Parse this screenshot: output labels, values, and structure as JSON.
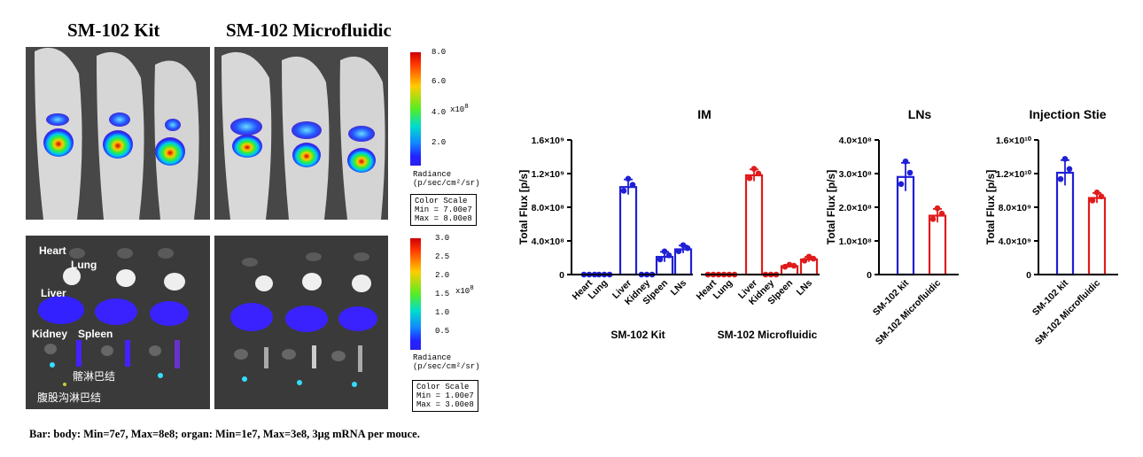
{
  "imaging": {
    "header_kit": "SM-102 Kit",
    "header_micro": "SM-102 Microfluidic",
    "body_scale": {
      "ticks": [
        "8.0",
        "6.0",
        "4.0",
        "2.0"
      ],
      "exponent": "x10",
      "exponent_power": "8",
      "radiance_label": "Radiance",
      "radiance_unit": "(p/sec/cm²/sr)",
      "box_title": "Color Scale",
      "box_min": "Min = 7.00e7",
      "box_max": "Max = 8.00e8"
    },
    "organ_scale": {
      "ticks": [
        "3.0",
        "2.5",
        "2.0",
        "1.5",
        "1.0",
        "0.5"
      ],
      "exponent": "x10",
      "exponent_power": "8",
      "radiance_label": "Radiance",
      "radiance_unit": "(p/sec/cm²/sr)",
      "box_title": "Color Scale",
      "box_min": "Min = 1.00e7",
      "box_max": "Max = 3.00e8"
    },
    "organ_labels": {
      "heart": "Heart",
      "lung": "Lung",
      "liver": "Liver",
      "kidney": "Kidney",
      "spleen": "Spleen",
      "ln_cn_1": "髂淋巴结",
      "ln_cn_2": "腹股沟淋巴结"
    },
    "footer": "Bar: body: Min=7e7, Max=8e8; organ: Min=1e7, Max=3e8, 3μg mRNA per mouce."
  },
  "colors": {
    "kit": "#1f1fd6",
    "micro": "#e01b1b"
  },
  "chart_data": [
    {
      "type": "bar",
      "title": "IM",
      "ylabel": "Total Flux [p/s]",
      "ylim": [
        0,
        1600000000
      ],
      "yticks": [
        "0",
        "4.0×10⁸",
        "8.0×10⁸",
        "1.2×10⁹",
        "1.6×10⁹"
      ],
      "categories": [
        "Heart",
        "Lung",
        "Liver",
        "Kidney",
        "Slpeen",
        "LNs"
      ],
      "groups": [
        "SM-102 Kit",
        "SM-102 Microfluidic"
      ],
      "series": [
        {
          "name": "SM-102 Kit",
          "color": "#1f1fd6",
          "values": [
            0,
            0,
            1040000000,
            0,
            210000000,
            300000000
          ],
          "errors": [
            0,
            0,
            90000000,
            0,
            60000000,
            45000000
          ]
        },
        {
          "name": "SM-102 Microfluidic",
          "color": "#e01b1b",
          "values": [
            0,
            0,
            1180000000,
            0,
            100000000,
            180000000
          ],
          "errors": [
            0,
            0,
            70000000,
            0,
            15000000,
            30000000
          ]
        }
      ]
    },
    {
      "type": "bar",
      "title": "LNs",
      "ylabel": "Total Flux [p/s]",
      "ylim": [
        0,
        400000000
      ],
      "yticks": [
        "0",
        "1.0×10⁸",
        "2.0×10⁸",
        "3.0×10⁸",
        "4.0×10⁸"
      ],
      "categories": [
        "SM-102 kit",
        "SM-102 Microfluidic"
      ],
      "values": [
        290000000,
        175000000
      ],
      "errors": [
        42000000,
        20000000
      ],
      "colors": [
        "#1f1fd6",
        "#e01b1b"
      ]
    },
    {
      "type": "bar",
      "title": "Injection Stie",
      "ylabel": "Total Flux [p/s]",
      "ylim": [
        0,
        16000000000
      ],
      "yticks": [
        "0",
        "4.0×10⁹",
        "8.0×10⁹",
        "1.2×10¹⁰",
        "1.6×10¹⁰"
      ],
      "categories": [
        "SM-102 kit",
        "SM-102 Microfluidic"
      ],
      "values": [
        12100000000,
        9100000000
      ],
      "errors": [
        1500000000,
        600000000
      ],
      "colors": [
        "#1f1fd6",
        "#e01b1b"
      ]
    }
  ]
}
